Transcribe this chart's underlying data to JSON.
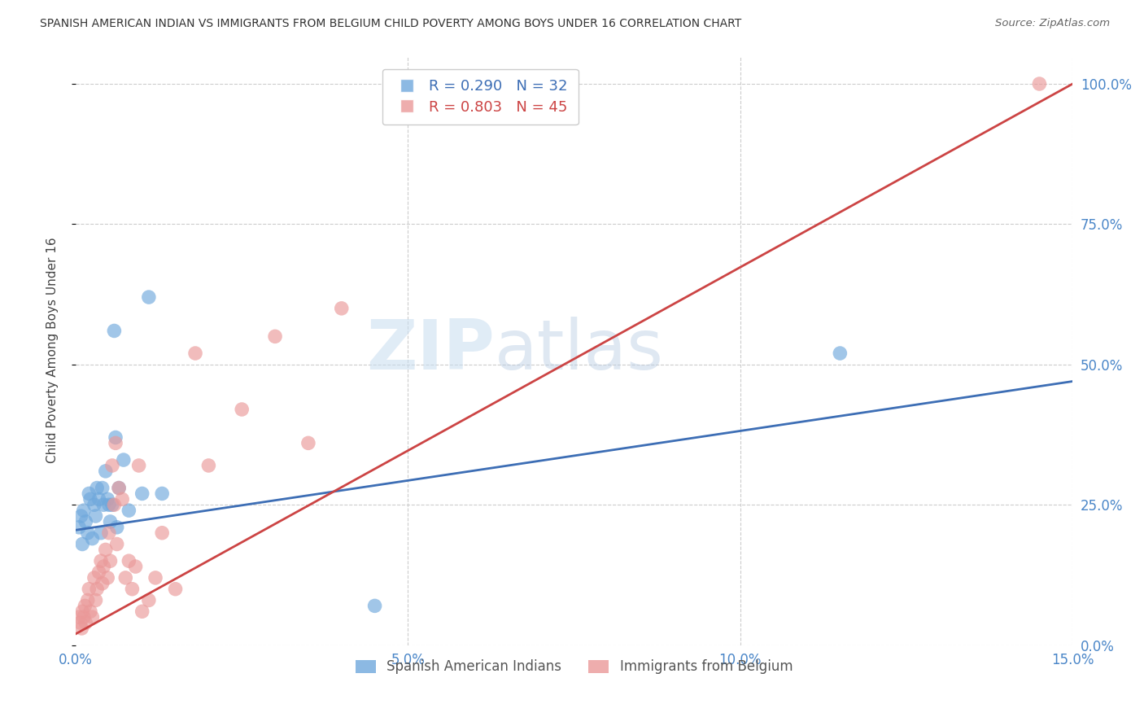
{
  "title": "SPANISH AMERICAN INDIAN VS IMMIGRANTS FROM BELGIUM CHILD POVERTY AMONG BOYS UNDER 16 CORRELATION CHART",
  "source": "Source: ZipAtlas.com",
  "ylabel": "Child Poverty Among Boys Under 16",
  "xlabel_vals": [
    0.0,
    5.0,
    10.0,
    15.0
  ],
  "ylabel_vals": [
    0.0,
    25.0,
    50.0,
    75.0,
    100.0
  ],
  "xlim": [
    0.0,
    15.0
  ],
  "ylim": [
    0.0,
    105.0
  ],
  "blue_label": "Spanish American Indians",
  "pink_label": "Immigrants from Belgium",
  "blue_R": 0.29,
  "blue_N": 32,
  "pink_R": 0.803,
  "pink_N": 45,
  "blue_color": "#6fa8dc",
  "pink_color": "#ea9999",
  "blue_line_color": "#3d6eb5",
  "pink_line_color": "#cc4444",
  "watermark_1": "ZIP",
  "watermark_2": "atlas",
  "blue_line": [
    0.0,
    20.5,
    15.0,
    47.0
  ],
  "pink_line": [
    0.0,
    2.0,
    15.0,
    100.0
  ],
  "blue_x": [
    0.05,
    0.08,
    0.1,
    0.12,
    0.15,
    0.18,
    0.2,
    0.22,
    0.25,
    0.28,
    0.3,
    0.32,
    0.35,
    0.38,
    0.4,
    0.42,
    0.45,
    0.48,
    0.5,
    0.52,
    0.55,
    0.58,
    0.6,
    0.62,
    0.65,
    0.72,
    0.8,
    1.0,
    1.1,
    1.3,
    4.5,
    11.5
  ],
  "blue_y": [
    21.0,
    23.0,
    18.0,
    24.0,
    22.0,
    20.0,
    27.0,
    26.0,
    19.0,
    25.0,
    23.0,
    28.0,
    26.0,
    20.0,
    28.0,
    25.0,
    31.0,
    26.0,
    25.0,
    22.0,
    25.0,
    56.0,
    37.0,
    21.0,
    28.0,
    33.0,
    24.0,
    27.0,
    62.0,
    27.0,
    7.0,
    52.0
  ],
  "pink_x": [
    0.05,
    0.07,
    0.09,
    0.1,
    0.12,
    0.14,
    0.15,
    0.18,
    0.2,
    0.22,
    0.25,
    0.28,
    0.3,
    0.32,
    0.35,
    0.38,
    0.4,
    0.42,
    0.45,
    0.48,
    0.5,
    0.52,
    0.55,
    0.58,
    0.6,
    0.62,
    0.65,
    0.7,
    0.75,
    0.8,
    0.85,
    0.9,
    0.95,
    1.0,
    1.1,
    1.2,
    1.3,
    1.5,
    1.8,
    2.0,
    2.5,
    3.0,
    3.5,
    4.0,
    14.5
  ],
  "pink_y": [
    5.0,
    4.0,
    3.0,
    6.0,
    5.0,
    7.0,
    4.0,
    8.0,
    10.0,
    6.0,
    5.0,
    12.0,
    8.0,
    10.0,
    13.0,
    15.0,
    11.0,
    14.0,
    17.0,
    12.0,
    20.0,
    15.0,
    32.0,
    25.0,
    36.0,
    18.0,
    28.0,
    26.0,
    12.0,
    15.0,
    10.0,
    14.0,
    32.0,
    6.0,
    8.0,
    12.0,
    20.0,
    10.0,
    52.0,
    32.0,
    42.0,
    55.0,
    36.0,
    60.0,
    100.0
  ],
  "background_color": "#ffffff",
  "grid_color": "#cccccc"
}
